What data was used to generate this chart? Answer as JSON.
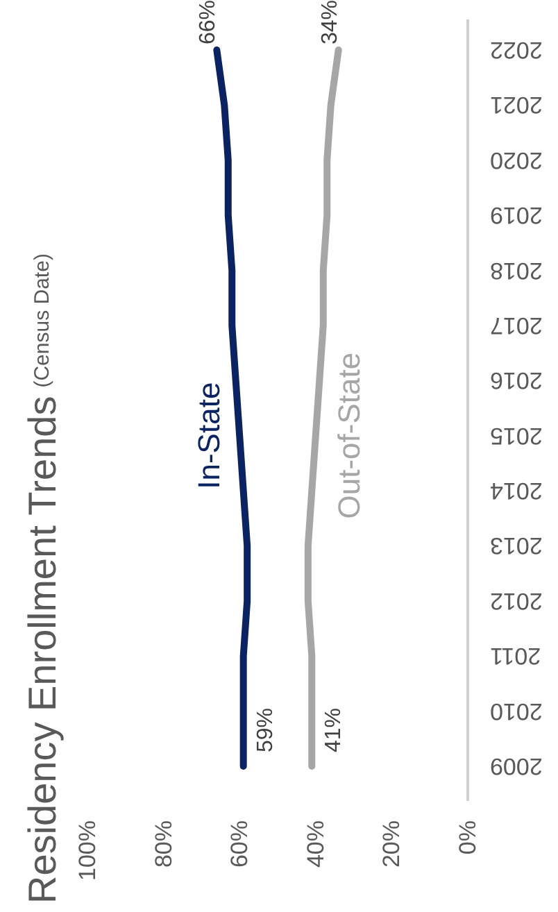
{
  "chart_data": {
    "type": "line",
    "orientation": "horizontal",
    "title": "Residency Enrollment Trends",
    "subtitle": "(Census Date)",
    "categories": [
      "2022",
      "2021",
      "2020",
      "2019",
      "2018",
      "2017",
      "2016",
      "2015",
      "2014",
      "2013",
      "2012",
      "2011",
      "2010",
      "2009"
    ],
    "series": [
      {
        "name": "In-State",
        "color": "#0b2461",
        "values": [
          66,
          64,
          63,
          63,
          62,
          62,
          61,
          60,
          59,
          58,
          58,
          59,
          59,
          59
        ],
        "value_labels": [
          "66%",
          null,
          null,
          null,
          null,
          null,
          null,
          null,
          null,
          null,
          null,
          null,
          null,
          "59%"
        ]
      },
      {
        "name": "Out-of-State",
        "color": "#a6a6a6",
        "values": [
          34,
          36,
          37,
          37,
          38,
          38,
          39,
          40,
          41,
          42,
          42,
          41,
          41,
          41
        ],
        "value_labels": [
          "34%",
          null,
          null,
          null,
          null,
          null,
          null,
          null,
          null,
          null,
          null,
          null,
          null,
          "41%"
        ]
      }
    ],
    "xlim": [
      100,
      0
    ],
    "xticks": [
      {
        "value": 100,
        "label": "100%"
      },
      {
        "value": 80,
        "label": "80%"
      },
      {
        "value": 60,
        "label": "60%"
      },
      {
        "value": 40,
        "label": "40%"
      },
      {
        "value": 20,
        "label": "20%"
      },
      {
        "value": 0,
        "label": "0%"
      }
    ],
    "grid": false,
    "legend": false,
    "marker": "none",
    "line_style": "solid"
  }
}
